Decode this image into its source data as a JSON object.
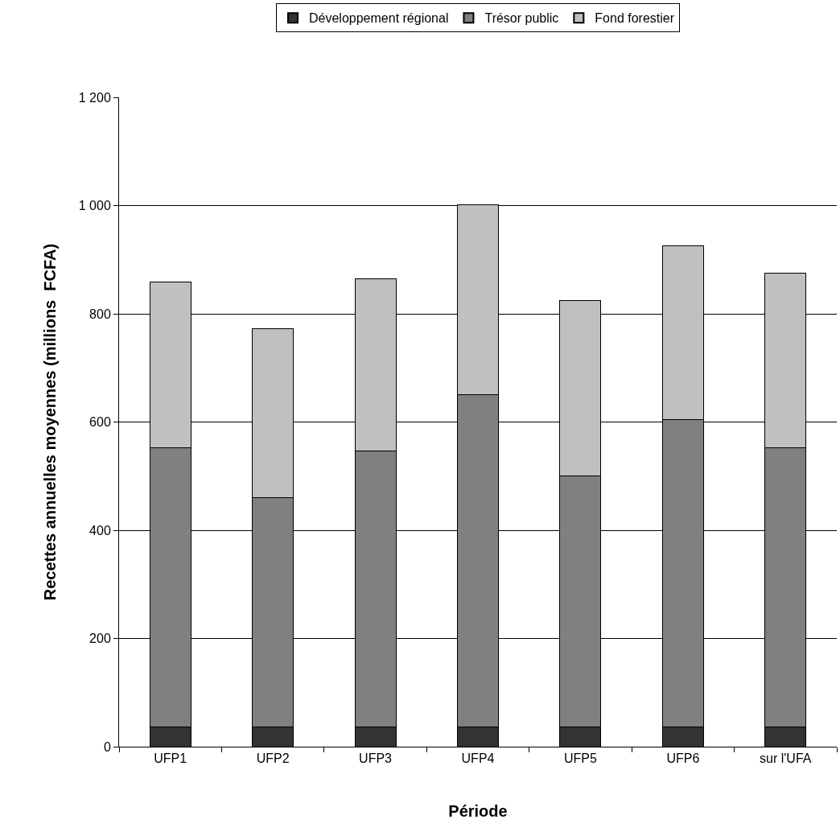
{
  "chart_data": {
    "type": "bar",
    "stacked": true,
    "xlabel": "Période",
    "ylabel": "Recettes annuelles moyennes (millions  FCFA)",
    "categories": [
      "UFP1",
      "UFP2",
      "UFP3",
      "UFP4",
      "UFP5",
      "UFP6",
      "sur l'UFA"
    ],
    "series": [
      {
        "name": "Développement régional",
        "color": "#333333",
        "values": [
          37,
          37,
          37,
          37,
          37,
          37,
          37
        ]
      },
      {
        "name": "Trésor public",
        "color": "#808080",
        "values": [
          515,
          423,
          510,
          613,
          463,
          568,
          515
        ]
      },
      {
        "name": "Fond forestier",
        "color": "#c0c0c0",
        "values": [
          307,
          312,
          318,
          352,
          325,
          320,
          323
        ]
      }
    ],
    "ylim": [
      0,
      1200
    ],
    "yticks": [
      0,
      200,
      400,
      600,
      800,
      {
        "value": 1000,
        "label": "1 000"
      },
      {
        "value": 1200,
        "label": "1 200"
      }
    ],
    "grid": "y",
    "legend": "top"
  }
}
